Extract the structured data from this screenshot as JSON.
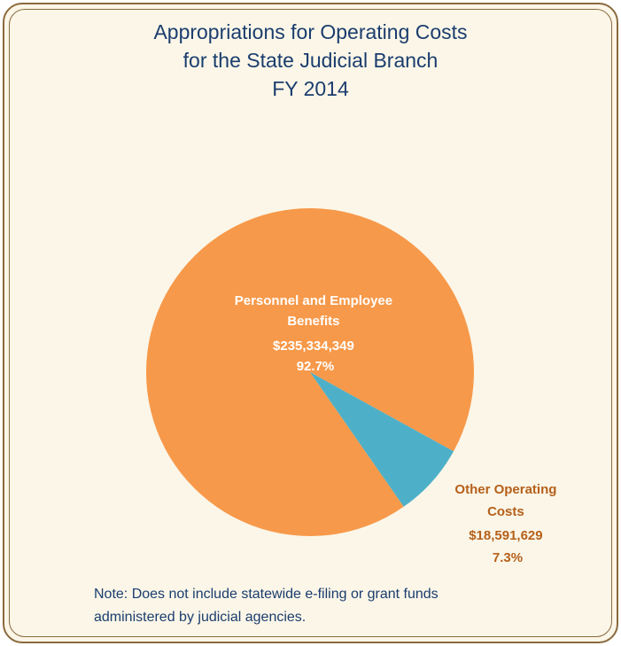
{
  "chart_data": {
    "type": "pie",
    "title": [
      "Appropriations for Operating Costs",
      "for the State Judicial Branch",
      "FY 2014"
    ],
    "slices": [
      {
        "label_lines": [
          "Personnel and Employee",
          "Benefits"
        ],
        "amount": "$235,334,349",
        "percent_label": "92.7%",
        "value": 92.7,
        "color": "#f7994a",
        "label_color": "#ffffff"
      },
      {
        "label_lines": [
          "Other Operating",
          "Costs"
        ],
        "amount": "$18,591,629",
        "percent_label": "7.3%",
        "value": 7.3,
        "color": "#4eb0c8",
        "label_color": "#b5601a"
      }
    ],
    "note": [
      "Note: Does not include statewide e-filing or grant funds",
      "administered by judicial agencies."
    ]
  }
}
